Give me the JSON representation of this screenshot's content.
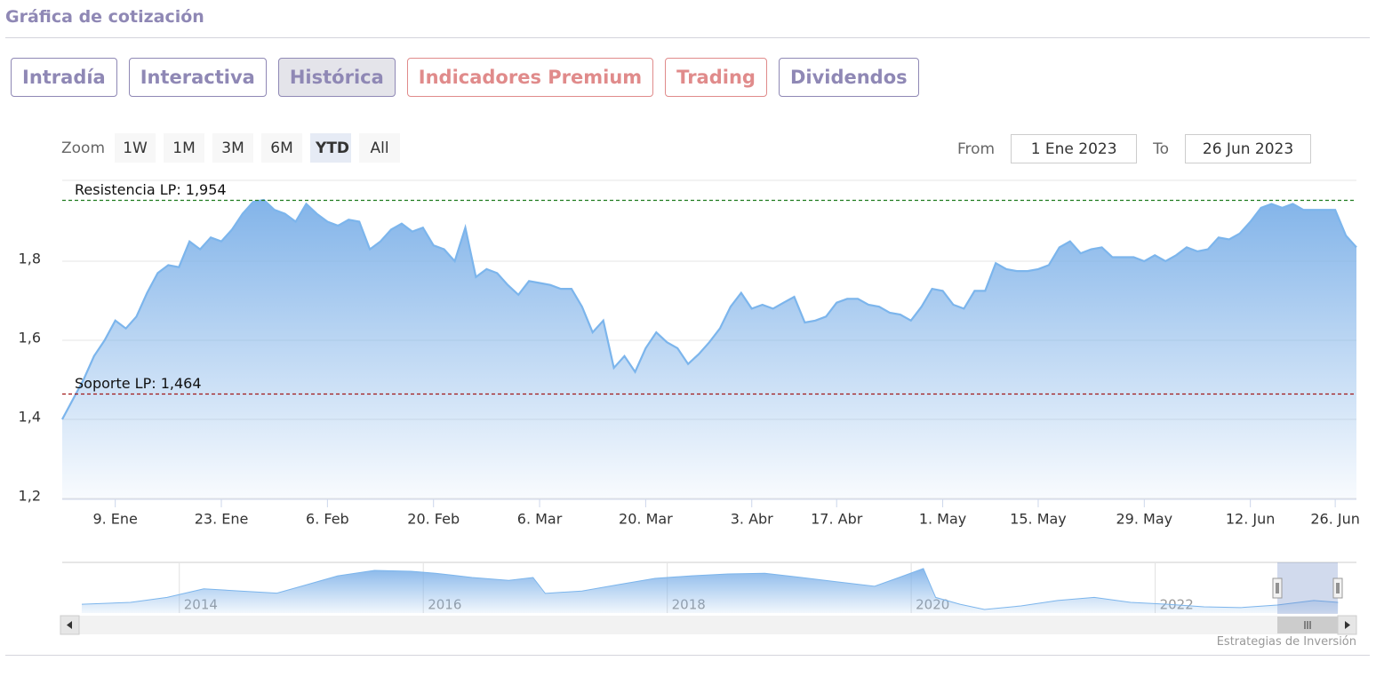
{
  "header": {
    "title": "Gráfica de cotización"
  },
  "tabs": [
    {
      "label": "Intradía",
      "color": "#8f88b5"
    },
    {
      "label": "Interactiva",
      "color": "#8f88b5"
    },
    {
      "label": "Histórica",
      "color": "#8f88b5"
    },
    {
      "label": "Indicadores Premium",
      "color": "#e08b8b"
    },
    {
      "label": "Trading",
      "color": "#e08b8b"
    },
    {
      "label": "Dividendos",
      "color": "#8f88b5"
    }
  ],
  "zoom": {
    "label": "Zoom",
    "buttons": [
      "1W",
      "1M",
      "3M",
      "6M",
      "YTD",
      "All"
    ]
  },
  "range": {
    "from_label": "From",
    "from": "1 Ene 2023",
    "to_label": "To",
    "to": "26 Jun 2023"
  },
  "credit": "Estrategias de Inversión",
  "chart_data": [
    {
      "type": "area",
      "color": "#7cb5ec",
      "categories": [
        null,
        null,
        null,
        null,
        null,
        "9. Ene",
        null,
        null,
        null,
        null,
        null,
        null,
        null,
        null,
        null,
        "23. Ene",
        null,
        null,
        null,
        null,
        null,
        null,
        null,
        null,
        null,
        "6. Feb",
        null,
        null,
        null,
        null,
        null,
        null,
        null,
        null,
        null,
        "20. Feb",
        null,
        null,
        null,
        null,
        null,
        null,
        null,
        null,
        null,
        "6. Mar",
        null,
        null,
        null,
        null,
        null,
        null,
        null,
        null,
        null,
        "20. Mar",
        null,
        null,
        null,
        null,
        null,
        null,
        null,
        null,
        null,
        "3. Abr",
        null,
        null,
        null,
        null,
        null,
        null,
        null,
        "17. Abr",
        null,
        null,
        null,
        null,
        null,
        null,
        null,
        null,
        null,
        "1. May",
        null,
        null,
        null,
        null,
        null,
        null,
        null,
        null,
        "15. May",
        null,
        null,
        null,
        null,
        null,
        null,
        null,
        null,
        null,
        "29. May",
        null,
        null,
        null,
        null,
        null,
        null,
        null,
        null,
        null,
        "12. Jun",
        null,
        null,
        null,
        null,
        null,
        null,
        null,
        "26. Jun",
        null,
        null
      ],
      "values": [
        1.4,
        1.45,
        1.5,
        1.56,
        1.6,
        1.65,
        1.63,
        1.66,
        1.72,
        1.77,
        1.79,
        1.785,
        1.85,
        1.83,
        1.86,
        1.85,
        1.88,
        1.92,
        1.95,
        1.955,
        1.93,
        1.92,
        1.9,
        1.945,
        1.92,
        1.9,
        1.89,
        1.905,
        1.9,
        1.83,
        1.85,
        1.88,
        1.895,
        1.875,
        1.885,
        1.84,
        1.83,
        1.8,
        1.885,
        1.76,
        1.78,
        1.77,
        1.74,
        1.715,
        1.75,
        1.745,
        1.74,
        1.73,
        1.73,
        1.685,
        1.62,
        1.65,
        1.53,
        1.56,
        1.52,
        1.58,
        1.62,
        1.595,
        1.58,
        1.54,
        1.565,
        1.595,
        1.63,
        1.685,
        1.72,
        1.68,
        1.69,
        1.68,
        1.695,
        1.71,
        1.645,
        1.65,
        1.66,
        1.695,
        1.705,
        1.705,
        1.69,
        1.685,
        1.67,
        1.665,
        1.65,
        1.685,
        1.73,
        1.725,
        1.69,
        1.68,
        1.725,
        1.725,
        1.795,
        1.78,
        1.775,
        1.775,
        1.78,
        1.79,
        1.835,
        1.85,
        1.82,
        1.83,
        1.835,
        1.81,
        1.81,
        1.81,
        1.8,
        1.815,
        1.8,
        1.815,
        1.835,
        1.825,
        1.83,
        1.86,
        1.855,
        1.87,
        1.9,
        1.935,
        1.945,
        1.935,
        1.945,
        1.93,
        1.93,
        1.93,
        1.93,
        1.865,
        1.835
      ],
      "ylim": [
        1.2,
        2.0
      ],
      "yticks": [
        {
          "value": 1.2,
          "label": "1,2"
        },
        {
          "value": 1.4,
          "label": "1,4"
        },
        {
          "value": 1.6,
          "label": "1,6"
        },
        {
          "value": 1.8,
          "label": "1,8"
        }
      ],
      "grid": true,
      "plot_lines": [
        {
          "label": "Resistencia LP: 1,954",
          "value": 1.954,
          "color": "#1e7a1e"
        },
        {
          "label": "Soporte LP: 1,464",
          "value": 1.464,
          "color": "#a01818"
        }
      ]
    },
    {
      "type": "area",
      "color": "#7cb5ec",
      "x": [
        2013.2,
        2013.6,
        2013.9,
        2014.2,
        2014.5,
        2014.8,
        2015.0,
        2015.3,
        2015.6,
        2015.9,
        2016.1,
        2016.4,
        2016.7,
        2016.9,
        2017.0,
        2017.3,
        2017.6,
        2017.9,
        2018.2,
        2018.5,
        2018.8,
        2019.1,
        2019.4,
        2019.7,
        2019.9,
        2020.1,
        2020.2,
        2020.4,
        2020.6,
        2020.9,
        2021.2,
        2021.5,
        2021.8,
        2022.1,
        2022.4,
        2022.7,
        2023.0,
        2023.3,
        2023.5
      ],
      "values": [
        1.72,
        1.85,
        2.2,
        2.8,
        2.65,
        2.5,
        2.98,
        3.72,
        4.1,
        4.04,
        3.9,
        3.6,
        3.4,
        3.6,
        2.48,
        2.65,
        3.1,
        3.54,
        3.72,
        3.85,
        3.9,
        3.6,
        3.29,
        2.98,
        3.6,
        4.23,
        2.2,
        1.72,
        1.35,
        1.6,
        1.98,
        2.2,
        1.85,
        1.72,
        1.54,
        1.48,
        1.66,
        1.98,
        1.85
      ],
      "xlim": [
        2013.04,
        2023.65
      ],
      "ylim": [
        1.1,
        4.6
      ],
      "xticks": [
        2014,
        2016,
        2018,
        2020,
        2022
      ]
    }
  ]
}
